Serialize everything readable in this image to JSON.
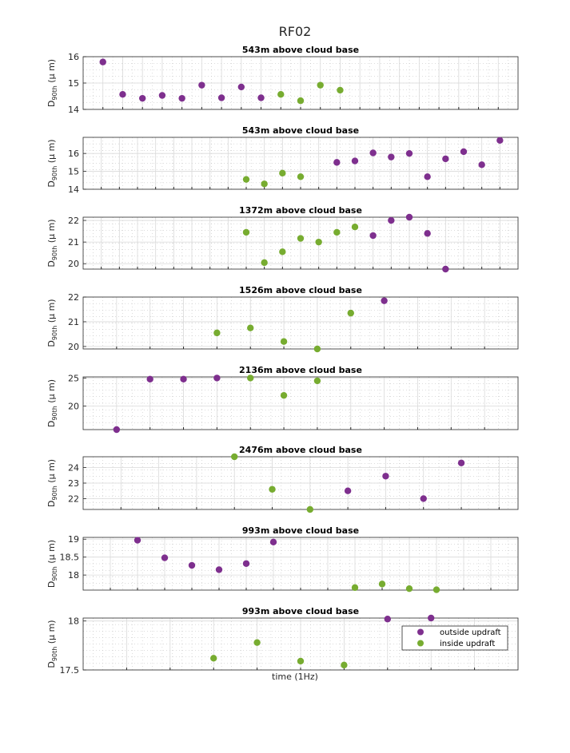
{
  "figure_title": "RF02",
  "xlabel": "time (1Hz)",
  "colors": {
    "outside": "#7e2f8e",
    "inside": "#77ac30"
  },
  "legend": {
    "placement": "inside-bottom-right of last panel",
    "entries": [
      "outside updraft",
      "inside updraft"
    ]
  },
  "chart_data": [
    {
      "type": "scatter",
      "title": "543m above cloud base",
      "ylabel_main": "D",
      "ylabel_sub": "90th",
      "ylabel_unit": "(μ m)",
      "ylim": [
        14,
        16
      ],
      "yticks": [
        14,
        15,
        16
      ],
      "xlim": [
        0,
        22
      ],
      "grid": true,
      "series": [
        {
          "name": "outside updraft",
          "x": [
            1,
            2,
            3,
            4,
            5,
            6,
            7,
            8,
            9
          ],
          "y": [
            15.8,
            14.57,
            14.42,
            14.53,
            14.42,
            14.92,
            14.44,
            14.85,
            14.44
          ]
        },
        {
          "name": "inside updraft",
          "x": [
            10,
            11,
            12,
            13
          ],
          "y": [
            14.57,
            14.33,
            14.92,
            14.73
          ]
        }
      ]
    },
    {
      "type": "scatter",
      "title": "543m above cloud base",
      "ylabel_main": "D",
      "ylabel_sub": "90th",
      "ylabel_unit": "(μ m)",
      "ylim": [
        14,
        16.9
      ],
      "yticks": [
        14,
        15,
        16
      ],
      "xlim": [
        0,
        24
      ],
      "grid": true,
      "series": [
        {
          "name": "outside updraft",
          "x": [
            14,
            15,
            16,
            17,
            18,
            19,
            20,
            21,
            22,
            23
          ],
          "y": [
            15.5,
            15.58,
            16.03,
            15.8,
            16.0,
            14.7,
            15.7,
            16.1,
            15.37,
            16.73
          ]
        },
        {
          "name": "inside updraft",
          "x": [
            9,
            10,
            11,
            12
          ],
          "y": [
            14.55,
            14.3,
            14.9,
            14.7
          ]
        }
      ]
    },
    {
      "type": "scatter",
      "title": "1372m above cloud base",
      "ylabel_main": "D",
      "ylabel_sub": "90th",
      "ylabel_unit": "(μ m)",
      "ylim": [
        19.75,
        22.15
      ],
      "yticks": [
        20,
        21,
        22
      ],
      "xlim": [
        0,
        24
      ],
      "grid": true,
      "series": [
        {
          "name": "outside updraft",
          "x": [
            16,
            17,
            18,
            19,
            20
          ],
          "y": [
            21.3,
            22.0,
            22.15,
            21.4,
            19.75
          ]
        },
        {
          "name": "inside updraft",
          "x": [
            9,
            10,
            11,
            12,
            13,
            14,
            15
          ],
          "y": [
            21.45,
            20.05,
            20.55,
            21.17,
            21.0,
            21.45,
            21.7
          ]
        }
      ]
    },
    {
      "type": "scatter",
      "title": "1526m above cloud base",
      "ylabel_main": "D",
      "ylabel_sub": "90th",
      "ylabel_unit": "(μ m)",
      "ylim": [
        19.9,
        22.0
      ],
      "yticks": [
        20,
        21,
        22
      ],
      "xlim": [
        0,
        13
      ],
      "grid": true,
      "series": [
        {
          "name": "outside updraft",
          "x": [
            9
          ],
          "y": [
            21.85
          ]
        },
        {
          "name": "inside updraft",
          "x": [
            4,
            5,
            6,
            7,
            8
          ],
          "y": [
            20.55,
            20.75,
            20.2,
            19.9,
            21.35
          ]
        }
      ]
    },
    {
      "type": "scatter",
      "title": "2136m above cloud base",
      "ylabel_main": "D",
      "ylabel_sub": "90th",
      "ylabel_unit": "(μ m)",
      "ylim": [
        15.8,
        25.2
      ],
      "yticks": [
        20,
        25
      ],
      "xlim": [
        0,
        13
      ],
      "grid": true,
      "series": [
        {
          "name": "outside updraft",
          "x": [
            1,
            2,
            3,
            4
          ],
          "y": [
            15.8,
            24.8,
            24.8,
            25.0
          ]
        },
        {
          "name": "inside updraft",
          "x": [
            5,
            6,
            7
          ],
          "y": [
            25.0,
            21.9,
            24.5
          ]
        }
      ]
    },
    {
      "type": "scatter",
      "title": "2476m above cloud base",
      "ylabel_main": "D",
      "ylabel_sub": "90th",
      "ylabel_unit": "(μ m)",
      "ylim": [
        21.3,
        24.7
      ],
      "yticks": [
        22,
        23,
        24
      ],
      "xlim": [
        0,
        11.5
      ],
      "grid": true,
      "series": [
        {
          "name": "outside updraft",
          "x": [
            7,
            8,
            9,
            10
          ],
          "y": [
            22.5,
            23.45,
            22.0,
            24.3
          ]
        },
        {
          "name": "inside updraft",
          "x": [
            4,
            5,
            6
          ],
          "y": [
            24.7,
            22.6,
            21.3
          ]
        }
      ]
    },
    {
      "type": "scatter",
      "title": "993m above cloud base",
      "ylabel_main": "D",
      "ylabel_sub": "90th",
      "ylabel_unit": "(μ m)",
      "ylim": [
        17.58,
        19.05
      ],
      "yticks": [
        18,
        18.5,
        19
      ],
      "xlim": [
        0,
        16
      ],
      "grid": true,
      "series": [
        {
          "name": "outside updraft",
          "x": [
            2,
            3,
            4,
            5,
            6,
            7
          ],
          "y": [
            18.97,
            18.48,
            18.27,
            18.15,
            18.32,
            18.92
          ]
        },
        {
          "name": "inside updraft",
          "x": [
            10,
            11,
            12,
            13
          ],
          "y": [
            17.65,
            17.75,
            17.62,
            17.59
          ]
        }
      ]
    },
    {
      "type": "scatter",
      "title": "993m above cloud base",
      "ylabel_main": "D",
      "ylabel_sub": "90th",
      "ylabel_unit": "(μ m)",
      "ylim": [
        17.5,
        18.03
      ],
      "yticks": [
        17.5,
        18
      ],
      "xlim": [
        0,
        10
      ],
      "grid": true,
      "series": [
        {
          "name": "outside updraft",
          "x": [
            7,
            8
          ],
          "y": [
            18.02,
            18.03
          ]
        },
        {
          "name": "inside updraft",
          "x": [
            3,
            4,
            5,
            6
          ],
          "y": [
            17.62,
            17.78,
            17.59,
            17.55
          ]
        }
      ]
    }
  ]
}
